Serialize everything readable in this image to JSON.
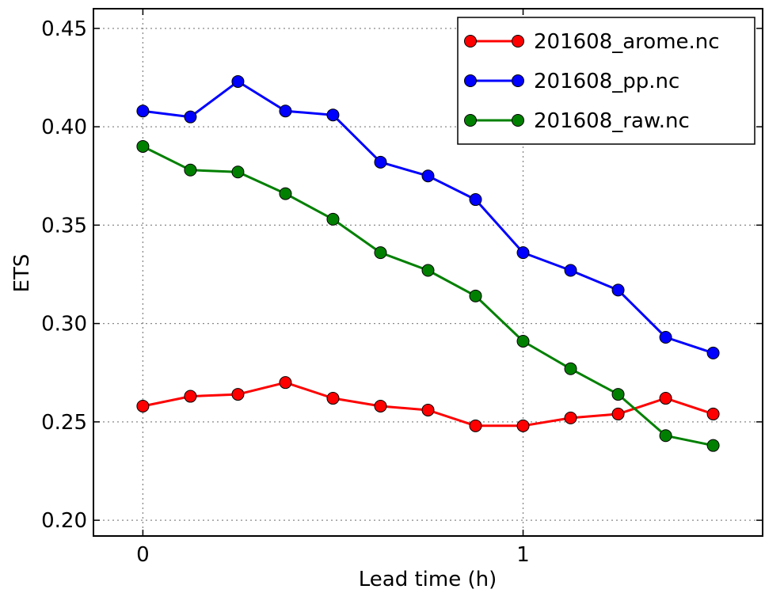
{
  "chart_data": {
    "type": "line",
    "title": "",
    "xlabel": "Lead time (h)",
    "ylabel": "ETS",
    "xlim": [
      -0.13,
      1.63
    ],
    "ylim": [
      0.192,
      0.46
    ],
    "xticks": [
      {
        "value": 0,
        "label": "0"
      },
      {
        "value": 1,
        "label": "1"
      }
    ],
    "yticks": [
      {
        "value": 0.2,
        "label": "0.20"
      },
      {
        "value": 0.25,
        "label": "0.25"
      },
      {
        "value": 0.3,
        "label": "0.30"
      },
      {
        "value": 0.35,
        "label": "0.35"
      },
      {
        "value": 0.4,
        "label": "0.40"
      },
      {
        "value": 0.45,
        "label": "0.45"
      }
    ],
    "grid": true,
    "legend_position": "top-right",
    "x": [
      0,
      0.125,
      0.25,
      0.375,
      0.5,
      0.625,
      0.75,
      0.875,
      1.0,
      1.125,
      1.25,
      1.375,
      1.5
    ],
    "series": [
      {
        "name": "201608_arome.nc",
        "color": "#ff0000",
        "values": [
          0.258,
          0.263,
          0.264,
          0.27,
          0.262,
          0.258,
          0.256,
          0.248,
          0.248,
          0.252,
          0.254,
          0.262,
          0.254
        ]
      },
      {
        "name": "201608_pp.nc",
        "color": "#0000ff",
        "values": [
          0.408,
          0.405,
          0.423,
          0.408,
          0.406,
          0.382,
          0.375,
          0.363,
          0.336,
          0.327,
          0.317,
          0.293,
          0.285
        ]
      },
      {
        "name": "201608_raw.nc",
        "color": "#008000",
        "values": [
          0.39,
          0.378,
          0.377,
          0.366,
          0.353,
          0.336,
          0.327,
          0.314,
          0.291,
          0.277,
          0.264,
          0.243,
          0.238
        ]
      }
    ]
  }
}
